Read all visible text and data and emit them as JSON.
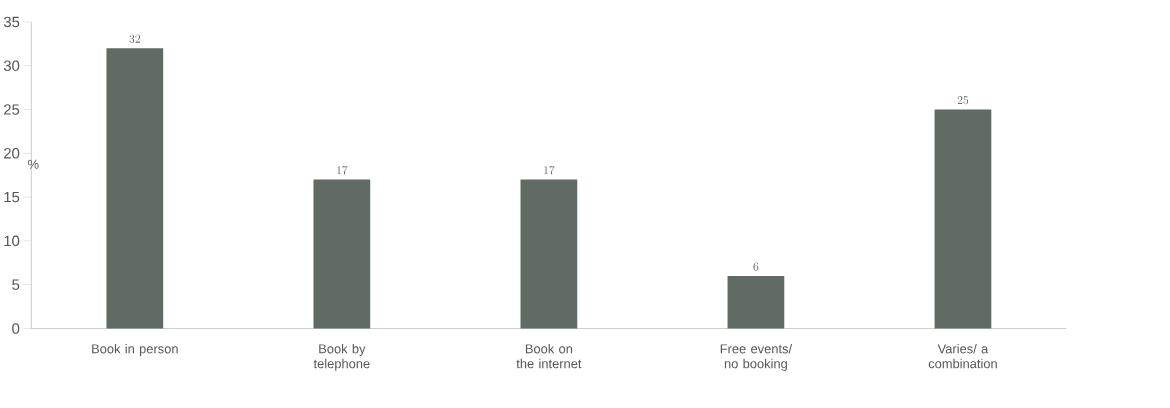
{
  "chart_data": {
    "type": "bar",
    "ylabel": "%",
    "categories": [
      "Book in person",
      "Book by telephone",
      "Book on the internet",
      "Free events/ no booking",
      "Varies/ a combination"
    ],
    "values": [
      32,
      17,
      17,
      6,
      25
    ],
    "color": "#5f6b63",
    "ylim": [
      0,
      35
    ],
    "yticks": [
      0,
      5,
      10,
      15,
      20,
      25,
      30,
      35
    ],
    "grid": false,
    "data_labels": true
  }
}
